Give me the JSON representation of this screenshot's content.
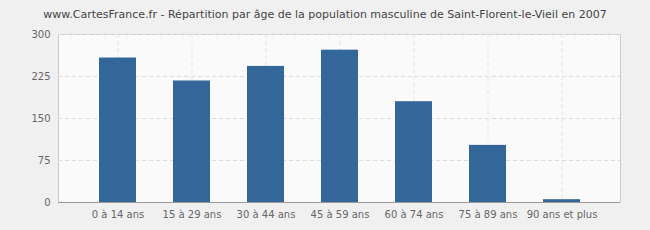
{
  "chart_data": {
    "type": "bar",
    "title": "www.CartesFrance.fr - Répartition par âge de la population masculine de Saint-Florent-le-Vieil en 2007",
    "categories": [
      "0 à 14 ans",
      "15 à 29 ans",
      "30 à 44 ans",
      "45 à 59 ans",
      "60 à 74 ans",
      "75 à 89 ans",
      "90 ans et plus"
    ],
    "values": [
      258,
      217,
      243,
      272,
      180,
      102,
      5
    ],
    "color": "#336699",
    "ylim": [
      0,
      300
    ],
    "yticks": [
      0,
      75,
      150,
      225,
      300
    ],
    "grid": true
  }
}
